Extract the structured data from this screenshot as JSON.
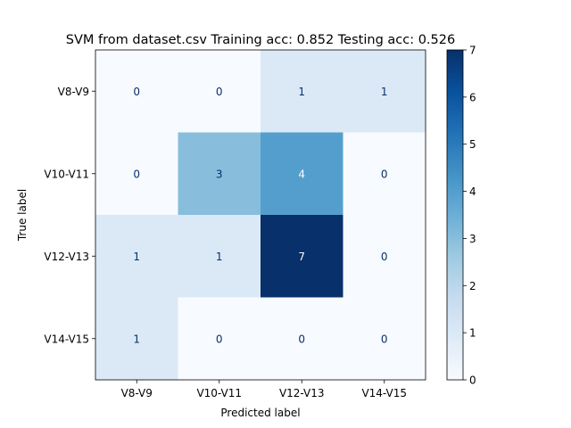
{
  "chart_data": {
    "type": "heatmap",
    "title": "SVM from dataset.csv Training acc: 0.852 Testing acc: 0.526",
    "xlabel": "Predicted label",
    "ylabel": "True label",
    "x_categories": [
      "V8-V9",
      "V10-V11",
      "V12-V13",
      "V14-V15"
    ],
    "y_categories": [
      "V8-V9",
      "V10-V11",
      "V12-V13",
      "V14-V15"
    ],
    "matrix": [
      [
        0,
        0,
        1,
        1
      ],
      [
        0,
        3,
        4,
        0
      ],
      [
        1,
        1,
        7,
        0
      ],
      [
        1,
        0,
        0,
        0
      ]
    ],
    "colormap": "Blues",
    "vmin": 0,
    "vmax": 7,
    "colorbar_ticks": [
      0,
      1,
      2,
      3,
      4,
      5,
      6,
      7
    ],
    "grid": false
  }
}
